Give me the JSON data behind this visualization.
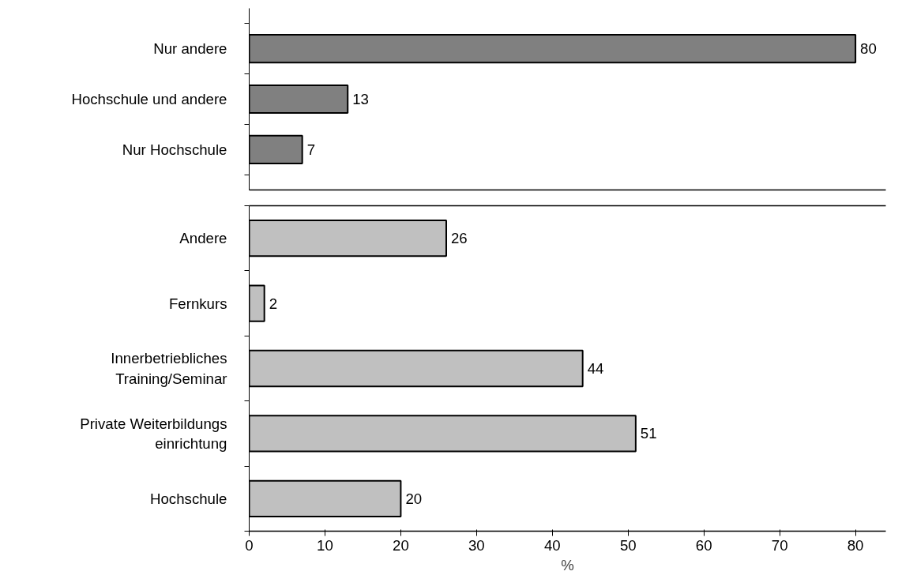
{
  "chart_data": [
    {
      "type": "bar",
      "orientation": "horizontal",
      "categories": [
        "Nur andere",
        "Hochschule und andere",
        "Nur Hochschule"
      ],
      "values": [
        80,
        13,
        7
      ],
      "color": "#808080",
      "xlim": [
        0,
        84
      ],
      "xticks": [
        0,
        10,
        20,
        30,
        40,
        50,
        60,
        70,
        80
      ],
      "data_labels": true,
      "tick_labels": "y",
      "grid": false
    },
    {
      "type": "bar",
      "orientation": "horizontal",
      "categories": [
        "Andere",
        "Fernkurs",
        "Innerbetriebliches\nTraining/Seminar",
        "Private Weiterbildungs\neinrichtung",
        "Hochschule"
      ],
      "values": [
        26,
        2,
        44,
        51,
        20
      ],
      "color": "#c0c0c0",
      "xlim": [
        0,
        84
      ],
      "xticks": [
        0,
        10,
        20,
        30,
        40,
        50,
        60,
        70,
        80
      ],
      "xlabel": "%",
      "data_labels": true,
      "grid": false
    }
  ]
}
